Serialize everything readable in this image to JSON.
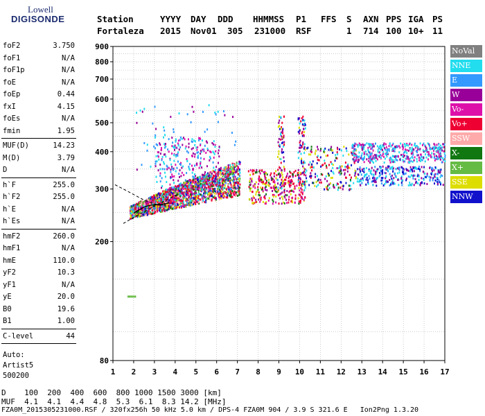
{
  "logo": {
    "line1": "Lowell",
    "line2": "DIGISONDE"
  },
  "header": {
    "labels": [
      "Station",
      "YYYY",
      "DAY",
      "DDD",
      "HHMMSS",
      "P1",
      "FFS",
      "S",
      "AXN",
      "PPS",
      "IGA",
      "PS"
    ],
    "values": [
      "Fortaleza",
      "2015",
      "Nov01",
      "305",
      "231000",
      "RSF",
      "",
      "1",
      "714",
      "100",
      "10+",
      "11"
    ]
  },
  "params": [
    {
      "group": [
        [
          "foF2",
          "3.750"
        ],
        [
          "foF1",
          "N/A"
        ],
        [
          "foF1p",
          "N/A"
        ],
        [
          "foE",
          "N/A"
        ],
        [
          "foEp",
          "0.44"
        ],
        [
          "fxI",
          "4.15"
        ],
        [
          "foEs",
          "N/A"
        ],
        [
          "fmin",
          "1.95"
        ]
      ]
    },
    {
      "group": [
        [
          "MUF(D)",
          "14.23"
        ],
        [
          "M(D)",
          "3.79"
        ],
        [
          "D",
          "N/A"
        ]
      ]
    },
    {
      "group": [
        [
          "h`F",
          "255.0"
        ],
        [
          "h`F2",
          "255.0"
        ],
        [
          "h`E",
          "N/A"
        ],
        [
          "h`Es",
          "N/A"
        ]
      ]
    },
    {
      "group": [
        [
          "hmF2",
          "260.0"
        ],
        [
          "hmF1",
          "N/A"
        ],
        [
          "hmE",
          "110.0"
        ],
        [
          "yF2",
          "10.3"
        ],
        [
          "yF1",
          "N/A"
        ],
        [
          "yE",
          "20.0"
        ],
        [
          "B0",
          "19.6"
        ],
        [
          "B1",
          "1.00"
        ]
      ]
    },
    {
      "group": [
        [
          "C-level",
          "44"
        ]
      ]
    }
  ],
  "auto": {
    "line1": "Auto:",
    "line2": "Artist5",
    "line3": "500200"
  },
  "legend": [
    {
      "label": "NoVal",
      "color": "#808080"
    },
    {
      "label": "NNE",
      "color": "#22ddee"
    },
    {
      "label": "E",
      "color": "#3399ff"
    },
    {
      "label": "W",
      "color": "#990099"
    },
    {
      "label": "Vo-",
      "color": "#dd11aa"
    },
    {
      "label": "Vo+",
      "color": "#ee0033"
    },
    {
      "label": "SSW",
      "color": "#ffaaaa"
    },
    {
      "label": "X-",
      "color": "#117711"
    },
    {
      "label": "X+",
      "color": "#66bb44"
    },
    {
      "label": "SSE",
      "color": "#dddd00"
    },
    {
      "label": "NNW",
      "color": "#1111cc"
    }
  ],
  "chart_data": {
    "type": "scatter",
    "title": "",
    "xlabel": "",
    "ylabel": "",
    "xlim": [
      1,
      17
    ],
    "ylim": [
      80,
      900
    ],
    "x_ticks": [
      1,
      2,
      3,
      4,
      5,
      6,
      7,
      8,
      9,
      10,
      11,
      12,
      13,
      14,
      15,
      16,
      17
    ],
    "y_ticks": [
      80,
      200,
      300,
      400,
      500,
      600,
      700,
      800,
      900
    ],
    "y_scale": "log",
    "grid": true
  },
  "footer": {
    "d_row": "D    100  200  400  600  800 1000 1500 3000 [km]",
    "muf_row": "MUF  4.1  4.1  4.4  4.8  5.3  6.1  8.3 14.2 [MHz]",
    "file_row": "FZA0M_2015305231000.RSF / 320fx256h 50 kHz 5.0 km / DPS-4 FZA0M 904 / 3.9 S 321.6 E   Ion2Png 1.3.20"
  }
}
